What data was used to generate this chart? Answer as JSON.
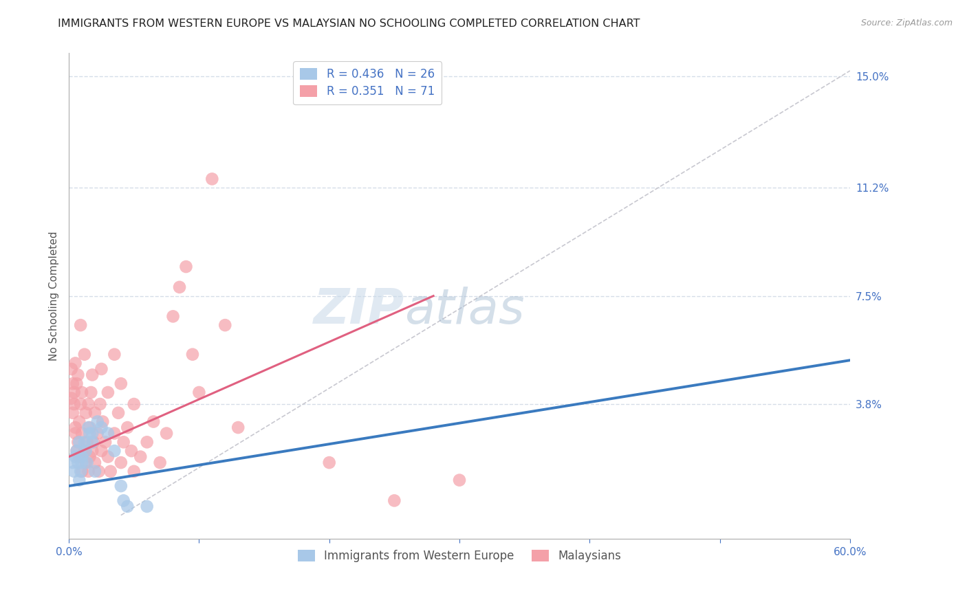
{
  "title": "IMMIGRANTS FROM WESTERN EUROPE VS MALAYSIAN NO SCHOOLING COMPLETED CORRELATION CHART",
  "source": "Source: ZipAtlas.com",
  "ylabel": "No Schooling Completed",
  "xlim": [
    0.0,
    0.6
  ],
  "ylim": [
    -0.008,
    0.158
  ],
  "xticks": [
    0.0,
    0.1,
    0.2,
    0.3,
    0.4,
    0.5,
    0.6
  ],
  "xticklabels": [
    "0.0%",
    "",
    "",
    "",
    "",
    "",
    "60.0%"
  ],
  "ytick_positions": [
    0.038,
    0.075,
    0.112,
    0.15
  ],
  "ytick_labels": [
    "3.8%",
    "7.5%",
    "11.2%",
    "15.0%"
  ],
  "legend_blue_label": "R = 0.436   N = 26",
  "legend_pink_label": "R = 0.351   N = 71",
  "legend_blue_color": "#a8c8e8",
  "legend_pink_color": "#f4a0a8",
  "blue_line_color": "#3a7abf",
  "pink_line_color": "#e06080",
  "dashed_line_color": "#c8c8d0",
  "watermark_zip": "ZIP",
  "watermark_atlas": "atlas",
  "blue_scatter": [
    [
      0.003,
      0.018
    ],
    [
      0.004,
      0.015
    ],
    [
      0.005,
      0.02
    ],
    [
      0.006,
      0.022
    ],
    [
      0.007,
      0.018
    ],
    [
      0.008,
      0.025
    ],
    [
      0.008,
      0.012
    ],
    [
      0.009,
      0.015
    ],
    [
      0.01,
      0.02
    ],
    [
      0.01,
      0.018
    ],
    [
      0.012,
      0.025
    ],
    [
      0.013,
      0.022
    ],
    [
      0.014,
      0.018
    ],
    [
      0.015,
      0.03
    ],
    [
      0.016,
      0.028
    ],
    [
      0.018,
      0.025
    ],
    [
      0.018,
      0.028
    ],
    [
      0.02,
      0.015
    ],
    [
      0.022,
      0.032
    ],
    [
      0.025,
      0.03
    ],
    [
      0.03,
      0.028
    ],
    [
      0.035,
      0.022
    ],
    [
      0.04,
      0.01
    ],
    [
      0.042,
      0.005
    ],
    [
      0.045,
      0.003
    ],
    [
      0.06,
      0.003
    ]
  ],
  "pink_scatter": [
    [
      0.002,
      0.04
    ],
    [
      0.002,
      0.05
    ],
    [
      0.003,
      0.035
    ],
    [
      0.003,
      0.045
    ],
    [
      0.004,
      0.038
    ],
    [
      0.004,
      0.042
    ],
    [
      0.005,
      0.03
    ],
    [
      0.005,
      0.052
    ],
    [
      0.005,
      0.028
    ],
    [
      0.006,
      0.022
    ],
    [
      0.006,
      0.045
    ],
    [
      0.007,
      0.025
    ],
    [
      0.007,
      0.048
    ],
    [
      0.008,
      0.032
    ],
    [
      0.008,
      0.02
    ],
    [
      0.009,
      0.038
    ],
    [
      0.009,
      0.065
    ],
    [
      0.01,
      0.015
    ],
    [
      0.01,
      0.028
    ],
    [
      0.01,
      0.042
    ],
    [
      0.012,
      0.022
    ],
    [
      0.012,
      0.055
    ],
    [
      0.013,
      0.018
    ],
    [
      0.013,
      0.035
    ],
    [
      0.014,
      0.025
    ],
    [
      0.015,
      0.015
    ],
    [
      0.015,
      0.038
    ],
    [
      0.016,
      0.02
    ],
    [
      0.016,
      0.03
    ],
    [
      0.017,
      0.042
    ],
    [
      0.018,
      0.022
    ],
    [
      0.018,
      0.048
    ],
    [
      0.019,
      0.025
    ],
    [
      0.02,
      0.018
    ],
    [
      0.02,
      0.035
    ],
    [
      0.022,
      0.028
    ],
    [
      0.023,
      0.015
    ],
    [
      0.024,
      0.038
    ],
    [
      0.025,
      0.022
    ],
    [
      0.025,
      0.05
    ],
    [
      0.026,
      0.032
    ],
    [
      0.028,
      0.025
    ],
    [
      0.03,
      0.02
    ],
    [
      0.03,
      0.042
    ],
    [
      0.032,
      0.015
    ],
    [
      0.035,
      0.028
    ],
    [
      0.035,
      0.055
    ],
    [
      0.038,
      0.035
    ],
    [
      0.04,
      0.018
    ],
    [
      0.04,
      0.045
    ],
    [
      0.042,
      0.025
    ],
    [
      0.045,
      0.03
    ],
    [
      0.048,
      0.022
    ],
    [
      0.05,
      0.015
    ],
    [
      0.05,
      0.038
    ],
    [
      0.055,
      0.02
    ],
    [
      0.06,
      0.025
    ],
    [
      0.065,
      0.032
    ],
    [
      0.07,
      0.018
    ],
    [
      0.075,
      0.028
    ],
    [
      0.08,
      0.068
    ],
    [
      0.085,
      0.078
    ],
    [
      0.09,
      0.085
    ],
    [
      0.095,
      0.055
    ],
    [
      0.1,
      0.042
    ],
    [
      0.11,
      0.115
    ],
    [
      0.12,
      0.065
    ],
    [
      0.13,
      0.03
    ],
    [
      0.2,
      0.018
    ],
    [
      0.25,
      0.005
    ],
    [
      0.3,
      0.012
    ]
  ],
  "blue_line": {
    "x0": 0.0,
    "y0": 0.01,
    "x1": 0.6,
    "y1": 0.053
  },
  "pink_line": {
    "x0": 0.0,
    "y0": 0.02,
    "x1": 0.28,
    "y1": 0.075
  },
  "dashed_line": {
    "x0": 0.04,
    "y0": 0.0,
    "x1": 0.6,
    "y1": 0.152
  },
  "background_color": "#ffffff",
  "grid_color": "#d5dde8",
  "title_fontsize": 11.5,
  "axis_label_fontsize": 11,
  "tick_fontsize": 11,
  "legend_fontsize": 12
}
